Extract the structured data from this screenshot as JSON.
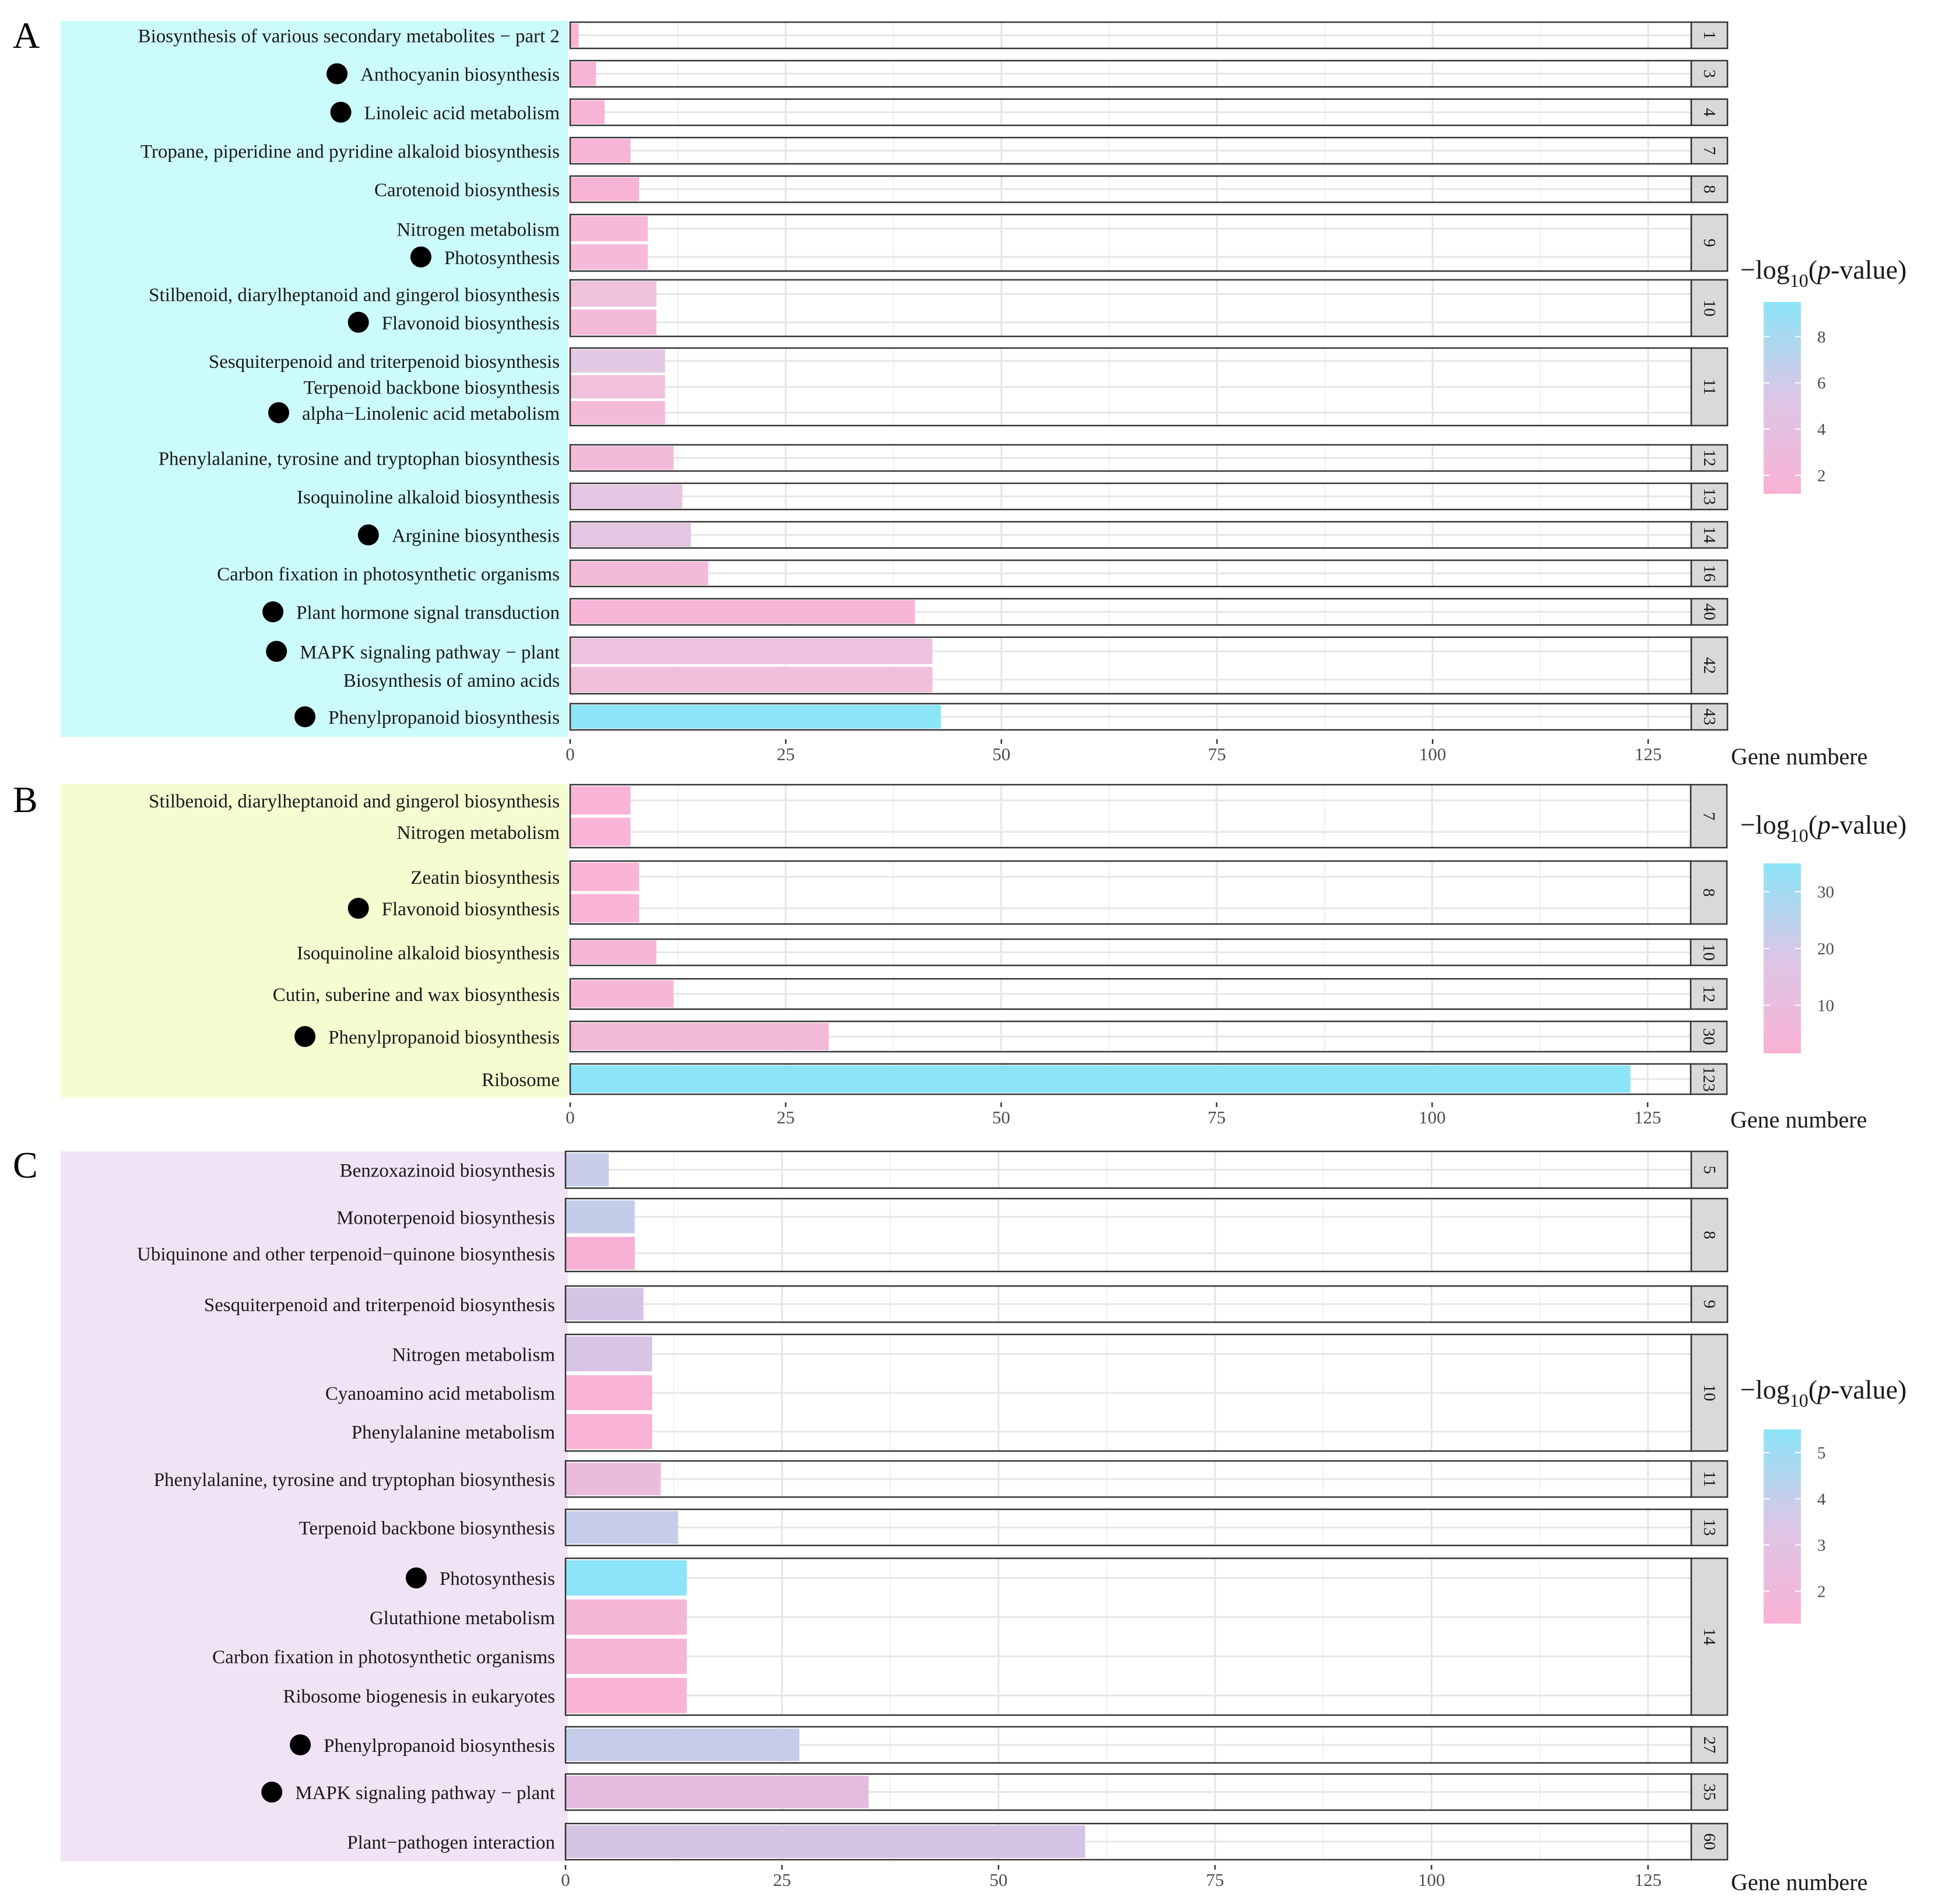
{
  "axis_title": "Gene numbere",
  "legend_title": {
    "main": "−log",
    "sub": "10",
    "paren_open": "(",
    "p": "p",
    "rest": "-value)"
  },
  "chart_data": [
    {
      "panel": "A",
      "type": "bar",
      "orientation": "horizontal",
      "background": "#ccfbfb",
      "xlabel": "Gene numbere",
      "xlim": [
        0,
        130
      ],
      "xticks": [
        0,
        25,
        50,
        75,
        100,
        125
      ],
      "legend": {
        "title": "−log10(p-value)",
        "min": 1.2,
        "max": 9.5,
        "ticks": [
          2,
          4,
          6,
          8
        ],
        "low_color": "#f9b2d4",
        "high_color": "#8ce4f8"
      },
      "groups": [
        {
          "label": "1",
          "items": [
            {
              "name": "Biosynthesis of various secondary metabolites − part 2",
              "value": 1,
              "color": "#f8b4d6",
              "marked": false
            }
          ]
        },
        {
          "label": "3",
          "items": [
            {
              "name": "Anthocyanin biosynthesis",
              "value": 3,
              "color": "#f8b4d6",
              "marked": true
            }
          ]
        },
        {
          "label": "4",
          "items": [
            {
              "name": "Linoleic acid metabolism",
              "value": 4,
              "color": "#f8b4d6",
              "marked": true
            }
          ]
        },
        {
          "label": "7",
          "items": [
            {
              "name": "Tropane, piperidine and pyridine alkaloid biosynthesis",
              "value": 7,
              "color": "#f8b4d6",
              "marked": false
            }
          ]
        },
        {
          "label": "8",
          "items": [
            {
              "name": "Carotenoid biosynthesis",
              "value": 8,
              "color": "#f8b4d6",
              "marked": false
            }
          ]
        },
        {
          "label": "9",
          "items": [
            {
              "name": "Nitrogen metabolism",
              "value": 9,
              "color": "#f5bad9",
              "marked": false
            },
            {
              "name": "Photosynthesis",
              "value": 9,
              "color": "#f5bad9",
              "marked": true
            }
          ]
        },
        {
          "label": "10",
          "items": [
            {
              "name": "Stilbenoid, diarylheptanoid and gingerol biosynthesis",
              "value": 10,
              "color": "#efc2de",
              "marked": false
            },
            {
              "name": "Flavonoid biosynthesis",
              "value": 10,
              "color": "#f4bad9",
              "marked": true
            }
          ]
        },
        {
          "label": "11",
          "items": [
            {
              "name": "Sesquiterpenoid and triterpenoid biosynthesis",
              "value": 11,
              "color": "#e2c8e2",
              "marked": false
            },
            {
              "name": "Terpenoid backbone biosynthesis",
              "value": 11,
              "color": "#f1c0dc",
              "marked": false
            },
            {
              "name": "alpha−Linolenic acid metabolism",
              "value": 11,
              "color": "#f4bad9",
              "marked": true
            }
          ]
        },
        {
          "label": "12",
          "items": [
            {
              "name": "Phenylalanine, tyrosine and tryptophan biosynthesis",
              "value": 12,
              "color": "#f4bad9",
              "marked": false
            }
          ]
        },
        {
          "label": "13",
          "items": [
            {
              "name": "Isoquinoline alkaloid biosynthesis",
              "value": 13,
              "color": "#e4c6e2",
              "marked": false
            }
          ]
        },
        {
          "label": "14",
          "items": [
            {
              "name": "Arginine biosynthesis",
              "value": 14,
              "color": "#e4c6e2",
              "marked": true
            }
          ]
        },
        {
          "label": "16",
          "items": [
            {
              "name": "Carbon fixation in photosynthetic organisms",
              "value": 16,
              "color": "#f4bad9",
              "marked": false
            }
          ]
        },
        {
          "label": "40",
          "items": [
            {
              "name": "Plant hormone signal transduction",
              "value": 40,
              "color": "#f7b6d7",
              "marked": true
            }
          ]
        },
        {
          "label": "42",
          "items": [
            {
              "name": "MAPK signaling pathway − plant",
              "value": 42,
              "color": "#ecc2de",
              "marked": true
            },
            {
              "name": "Biosynthesis of amino acids",
              "value": 42,
              "color": "#f1bedb",
              "marked": false
            }
          ]
        },
        {
          "label": "43",
          "items": [
            {
              "name": "Phenylpropanoid biosynthesis",
              "value": 43,
              "color": "#8ce4f8",
              "marked": true
            }
          ]
        }
      ]
    },
    {
      "panel": "B",
      "type": "bar",
      "orientation": "horizontal",
      "background": "#f3fdd0",
      "xlabel": "Gene numbere",
      "xlim": [
        0,
        130
      ],
      "xticks": [
        0,
        25,
        50,
        75,
        100,
        125
      ],
      "legend": {
        "title": "−log10(p-value)",
        "min": 1.5,
        "max": 35,
        "ticks": [
          10,
          20,
          30
        ],
        "low_color": "#f9b2d4",
        "high_color": "#8ce4f8"
      },
      "groups": [
        {
          "label": "7",
          "items": [
            {
              "name": "Stilbenoid, diarylheptanoid and gingerol biosynthesis",
              "value": 7,
              "color": "#f9b4d6",
              "marked": false
            },
            {
              "name": "Nitrogen metabolism",
              "value": 7,
              "color": "#f9b4d6",
              "marked": false
            }
          ]
        },
        {
          "label": "8",
          "items": [
            {
              "name": "Zeatin biosynthesis",
              "value": 8,
              "color": "#f9b4d6",
              "marked": false
            },
            {
              "name": "Flavonoid biosynthesis",
              "value": 8,
              "color": "#f9b4d6",
              "marked": true
            }
          ]
        },
        {
          "label": "10",
          "items": [
            {
              "name": "Isoquinoline alkaloid biosynthesis",
              "value": 10,
              "color": "#f8b5d6",
              "marked": false
            }
          ]
        },
        {
          "label": "12",
          "items": [
            {
              "name": "Cutin, suberine and wax biosynthesis",
              "value": 12,
              "color": "#f7b6d7",
              "marked": false
            }
          ]
        },
        {
          "label": "30",
          "items": [
            {
              "name": "Phenylpropanoid biosynthesis",
              "value": 30,
              "color": "#f3b9d8",
              "marked": true
            }
          ]
        },
        {
          "label": "123",
          "items": [
            {
              "name": "Ribosome",
              "value": 123,
              "color": "#8ce4f8",
              "marked": false
            }
          ]
        }
      ]
    },
    {
      "panel": "C",
      "type": "bar",
      "orientation": "horizontal",
      "background": "#f0e3f5",
      "xlabel": "Gene numbere",
      "xlim": [
        0,
        130
      ],
      "xticks": [
        0,
        25,
        50,
        75,
        100,
        125
      ],
      "legend": {
        "title": "−log10(p-value)",
        "min": 1.3,
        "max": 5.5,
        "ticks": [
          2,
          3,
          4,
          5
        ],
        "low_color": "#f9b2d4",
        "high_color": "#8ce4f8"
      },
      "groups": [
        {
          "label": "5",
          "items": [
            {
              "name": "Benzoxazinoid biosynthesis",
              "value": 5,
              "color": "#c8cdea",
              "marked": false
            }
          ]
        },
        {
          "label": "8",
          "items": [
            {
              "name": "Monoterpenoid biosynthesis",
              "value": 8,
              "color": "#c2cdea",
              "marked": false
            },
            {
              "name": "Ubiquinone and other terpenoid−quinone biosynthesis",
              "value": 8,
              "color": "#f8b0d4",
              "marked": false
            }
          ]
        },
        {
          "label": "9",
          "items": [
            {
              "name": "Sesquiterpenoid and triterpenoid biosynthesis",
              "value": 9,
              "color": "#d5c4e4",
              "marked": false
            }
          ]
        },
        {
          "label": "10",
          "items": [
            {
              "name": "Nitrogen metabolism",
              "value": 10,
              "color": "#d8c4e4",
              "marked": false
            },
            {
              "name": "Cyanoamino acid metabolism",
              "value": 10,
              "color": "#f8b2d5",
              "marked": false
            },
            {
              "name": "Phenylalanine metabolism",
              "value": 10,
              "color": "#f8b2d5",
              "marked": false
            }
          ]
        },
        {
          "label": "11",
          "items": [
            {
              "name": "Phenylalanine, tyrosine and tryptophan biosynthesis",
              "value": 11,
              "color": "#ebbbdc",
              "marked": false
            }
          ]
        },
        {
          "label": "13",
          "items": [
            {
              "name": "Terpenoid backbone biosynthesis",
              "value": 13,
              "color": "#c6cdea",
              "marked": false
            }
          ]
        },
        {
          "label": "14",
          "items": [
            {
              "name": "Photosynthesis",
              "value": 14,
              "color": "#8ce4f8",
              "marked": true
            },
            {
              "name": "Glutathione metabolism",
              "value": 14,
              "color": "#f4b6d7",
              "marked": false
            },
            {
              "name": "Carbon fixation in photosynthetic organisms",
              "value": 14,
              "color": "#f6b4d6",
              "marked": false
            },
            {
              "name": "Ribosome biogenesis in eukaryotes",
              "value": 14,
              "color": "#f8b2d5",
              "marked": false
            }
          ]
        },
        {
          "label": "27",
          "items": [
            {
              "name": "Phenylpropanoid biosynthesis",
              "value": 27,
              "color": "#c6cdea",
              "marked": true
            }
          ]
        },
        {
          "label": "35",
          "items": [
            {
              "name": "MAPK signaling pathway − plant",
              "value": 35,
              "color": "#e6bcde",
              "marked": true
            }
          ]
        },
        {
          "label": "60",
          "items": [
            {
              "name": "Plant−pathogen interaction",
              "value": 60,
              "color": "#d5c4e4",
              "marked": false
            }
          ]
        }
      ]
    }
  ]
}
